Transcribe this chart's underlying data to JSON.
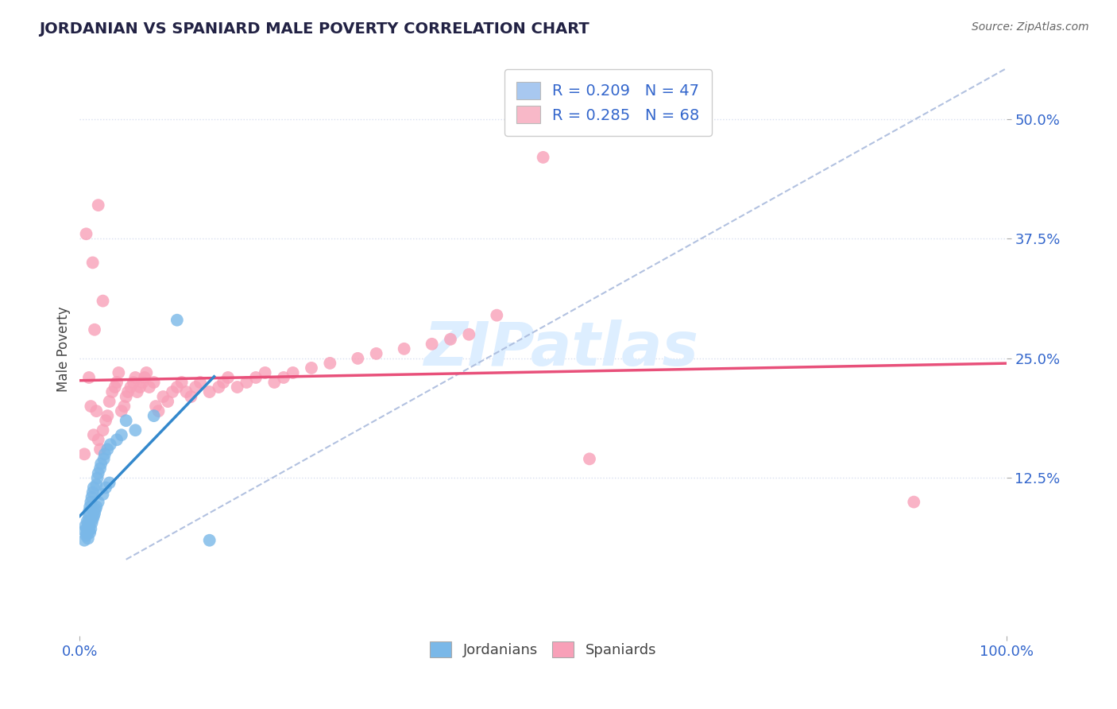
{
  "title": "JORDANIAN VS SPANIARD MALE POVERTY CORRELATION CHART",
  "source_text": "Source: ZipAtlas.com",
  "ylabel": "Male Poverty",
  "xlim": [
    0,
    1.0
  ],
  "ylim": [
    -0.04,
    0.56
  ],
  "xtick_vals": [
    0,
    1.0
  ],
  "xtick_labels": [
    "0.0%",
    "100.0%"
  ],
  "ytick_vals": [
    0.125,
    0.25,
    0.375,
    0.5
  ],
  "ytick_labels": [
    "12.5%",
    "25.0%",
    "37.5%",
    "50.0%"
  ],
  "legend_entries": [
    {
      "label": "R = 0.209   N = 47",
      "facecolor": "#a8c8f0"
    },
    {
      "label": "R = 0.285   N = 68",
      "facecolor": "#f8b8c8"
    }
  ],
  "legend_bottom": [
    "Jordanians",
    "Spaniards"
  ],
  "jordanian_color": "#7ab8e8",
  "spaniard_color": "#f8a0b8",
  "jordanian_line_color": "#3388cc",
  "spaniard_line_color": "#e8507a",
  "watermark": "ZIPatlas",
  "watermark_color": "#ddeeff",
  "background_color": "#ffffff",
  "grid_color": "#d8dff0",
  "jordanian_x": [
    0.005,
    0.005,
    0.006,
    0.007,
    0.008,
    0.008,
    0.008,
    0.009,
    0.009,
    0.01,
    0.01,
    0.01,
    0.01,
    0.01,
    0.011,
    0.011,
    0.012,
    0.012,
    0.013,
    0.013,
    0.014,
    0.014,
    0.015,
    0.015,
    0.016,
    0.017,
    0.018,
    0.018,
    0.019,
    0.02,
    0.02,
    0.022,
    0.023,
    0.025,
    0.026,
    0.027,
    0.028,
    0.03,
    0.032,
    0.033,
    0.04,
    0.045,
    0.05,
    0.06,
    0.08,
    0.105,
    0.14
  ],
  "jordanian_y": [
    0.06,
    0.07,
    0.075,
    0.065,
    0.068,
    0.072,
    0.08,
    0.062,
    0.078,
    0.07,
    0.075,
    0.08,
    0.085,
    0.09,
    0.068,
    0.095,
    0.072,
    0.1,
    0.078,
    0.105,
    0.082,
    0.11,
    0.085,
    0.115,
    0.088,
    0.092,
    0.118,
    0.095,
    0.125,
    0.1,
    0.13,
    0.135,
    0.14,
    0.108,
    0.145,
    0.15,
    0.115,
    0.155,
    0.12,
    0.16,
    0.165,
    0.17,
    0.185,
    0.175,
    0.19,
    0.29,
    0.06
  ],
  "spaniard_x": [
    0.005,
    0.007,
    0.01,
    0.012,
    0.014,
    0.015,
    0.016,
    0.018,
    0.02,
    0.02,
    0.022,
    0.025,
    0.025,
    0.028,
    0.03,
    0.032,
    0.035,
    0.038,
    0.04,
    0.042,
    0.045,
    0.048,
    0.05,
    0.052,
    0.055,
    0.058,
    0.06,
    0.062,
    0.065,
    0.068,
    0.07,
    0.072,
    0.075,
    0.08,
    0.082,
    0.085,
    0.09,
    0.095,
    0.1,
    0.105,
    0.11,
    0.115,
    0.12,
    0.125,
    0.13,
    0.14,
    0.15,
    0.155,
    0.16,
    0.17,
    0.18,
    0.19,
    0.2,
    0.21,
    0.22,
    0.23,
    0.25,
    0.27,
    0.3,
    0.32,
    0.35,
    0.38,
    0.4,
    0.42,
    0.45,
    0.5,
    0.55,
    0.9
  ],
  "spaniard_y": [
    0.15,
    0.38,
    0.23,
    0.2,
    0.35,
    0.17,
    0.28,
    0.195,
    0.41,
    0.165,
    0.155,
    0.31,
    0.175,
    0.185,
    0.19,
    0.205,
    0.215,
    0.22,
    0.225,
    0.235,
    0.195,
    0.2,
    0.21,
    0.215,
    0.22,
    0.225,
    0.23,
    0.215,
    0.22,
    0.225,
    0.23,
    0.235,
    0.22,
    0.225,
    0.2,
    0.195,
    0.21,
    0.205,
    0.215,
    0.22,
    0.225,
    0.215,
    0.21,
    0.22,
    0.225,
    0.215,
    0.22,
    0.225,
    0.23,
    0.22,
    0.225,
    0.23,
    0.235,
    0.225,
    0.23,
    0.235,
    0.24,
    0.245,
    0.25,
    0.255,
    0.26,
    0.265,
    0.27,
    0.275,
    0.295,
    0.46,
    0.145,
    0.1
  ]
}
